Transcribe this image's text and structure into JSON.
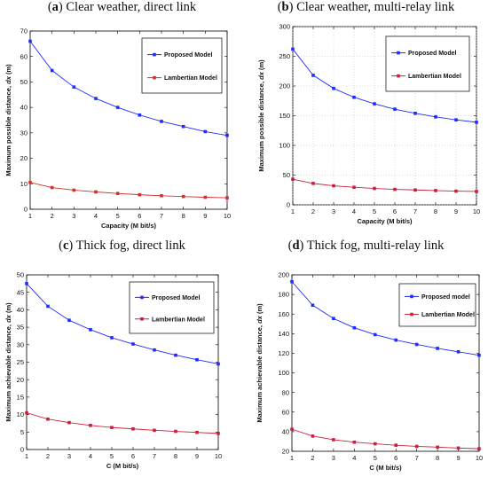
{
  "chart_data": [
    {
      "panel_letter": "a",
      "title": "Clear weather, direct link",
      "type": "line",
      "xlabel": "Capacity (M bit/s)",
      "ylabel": "Maximum possible distance, ",
      "ylabel_var": "dx",
      "ylabel_unit": " (m)",
      "x": [
        1,
        2,
        3,
        4,
        5,
        6,
        7,
        8,
        9,
        10
      ],
      "xlim": [
        1,
        10
      ],
      "ylim": [
        0,
        70
      ],
      "yticks": [
        0,
        10,
        20,
        30,
        40,
        50,
        60,
        70
      ],
      "grid": false,
      "legend_position": "top-right",
      "series": [
        {
          "name": "Proposed Model",
          "color": "#1f2bff",
          "marker": "square",
          "values": [
            66,
            54.5,
            48,
            43.5,
            40,
            37,
            34.5,
            32.5,
            30.5,
            29
          ]
        },
        {
          "name": "Lambertian Model",
          "color": "#d0312d",
          "marker": "square",
          "values": [
            10.5,
            8.5,
            7.5,
            6.8,
            6.2,
            5.7,
            5.3,
            5.0,
            4.7,
            4.5
          ]
        }
      ]
    },
    {
      "panel_letter": "b",
      "title": "Clear weather, multi-relay link",
      "type": "line",
      "xlabel": "Capacity (M bit/s)",
      "ylabel": "Maximum possible distance, ",
      "ylabel_var": "dx",
      "ylabel_unit": " (m)",
      "x": [
        1,
        2,
        3,
        4,
        5,
        6,
        7,
        8,
        9,
        10
      ],
      "xlim": [
        1,
        10
      ],
      "ylim": [
        0,
        300
      ],
      "yticks": [
        0,
        50,
        100,
        150,
        200,
        250,
        300
      ],
      "grid": true,
      "legend_position": "top-right",
      "series": [
        {
          "name": "Proposed Model",
          "color": "#1f2bff",
          "marker": "square",
          "values": [
            262,
            218,
            196,
            181,
            170,
            161,
            154,
            148,
            143,
            139
          ]
        },
        {
          "name": "Lambertian Model",
          "color": "#c8203c",
          "marker": "square",
          "values": [
            43,
            36,
            32,
            29.5,
            27.5,
            26,
            25,
            24,
            23,
            22.5
          ]
        }
      ]
    },
    {
      "panel_letter": "c",
      "title": "Thick fog, direct link",
      "type": "line",
      "xlabel": "C (M bit/s)",
      "ylabel": "Maximum achievable distance, ",
      "ylabel_var": "dx",
      "ylabel_unit": " (m)",
      "x": [
        1,
        2,
        3,
        4,
        5,
        6,
        7,
        8,
        9,
        10
      ],
      "xlim": [
        1,
        10
      ],
      "ylim": [
        0,
        50
      ],
      "yticks": [
        0,
        5,
        10,
        15,
        20,
        25,
        30,
        35,
        40,
        45,
        50
      ],
      "grid": false,
      "legend_position": "top-right",
      "series": [
        {
          "name": "Proposed Model",
          "color": "#1f2bff",
          "marker": "square",
          "values": [
            47.5,
            41,
            37,
            34.3,
            32,
            30.2,
            28.5,
            27,
            25.7,
            24.5
          ]
        },
        {
          "name": "Lambertian Model",
          "color": "#c8203c",
          "marker": "square",
          "values": [
            10.5,
            8.7,
            7.7,
            6.9,
            6.3,
            5.9,
            5.5,
            5.2,
            4.9,
            4.6
          ]
        }
      ]
    },
    {
      "panel_letter": "d",
      "title": "Thick fog, multi-relay link",
      "type": "line",
      "xlabel": "C (M bit/s)",
      "ylabel": "Maximum achievable distance, ",
      "ylabel_var": "dx",
      "ylabel_unit": " (m)",
      "x": [
        1,
        2,
        3,
        4,
        5,
        6,
        7,
        8,
        9,
        10
      ],
      "xlim": [
        1,
        10
      ],
      "ylim": [
        20,
        200
      ],
      "yticks": [
        20,
        40,
        60,
        80,
        100,
        120,
        140,
        160,
        180,
        200
      ],
      "grid": false,
      "legend_position": "top-right",
      "series": [
        {
          "name": "Proposed model",
          "color": "#1f2bff",
          "marker": "square",
          "values": [
            193,
            169,
            155.5,
            146,
            139,
            133.5,
            129,
            125,
            121.5,
            118
          ]
        },
        {
          "name": "Lambertian Model",
          "color": "#c8203c",
          "marker": "square",
          "values": [
            42.5,
            35.5,
            31.8,
            29.3,
            27.6,
            26.2,
            25.0,
            24.2,
            23.3,
            22.6
          ]
        }
      ]
    }
  ]
}
